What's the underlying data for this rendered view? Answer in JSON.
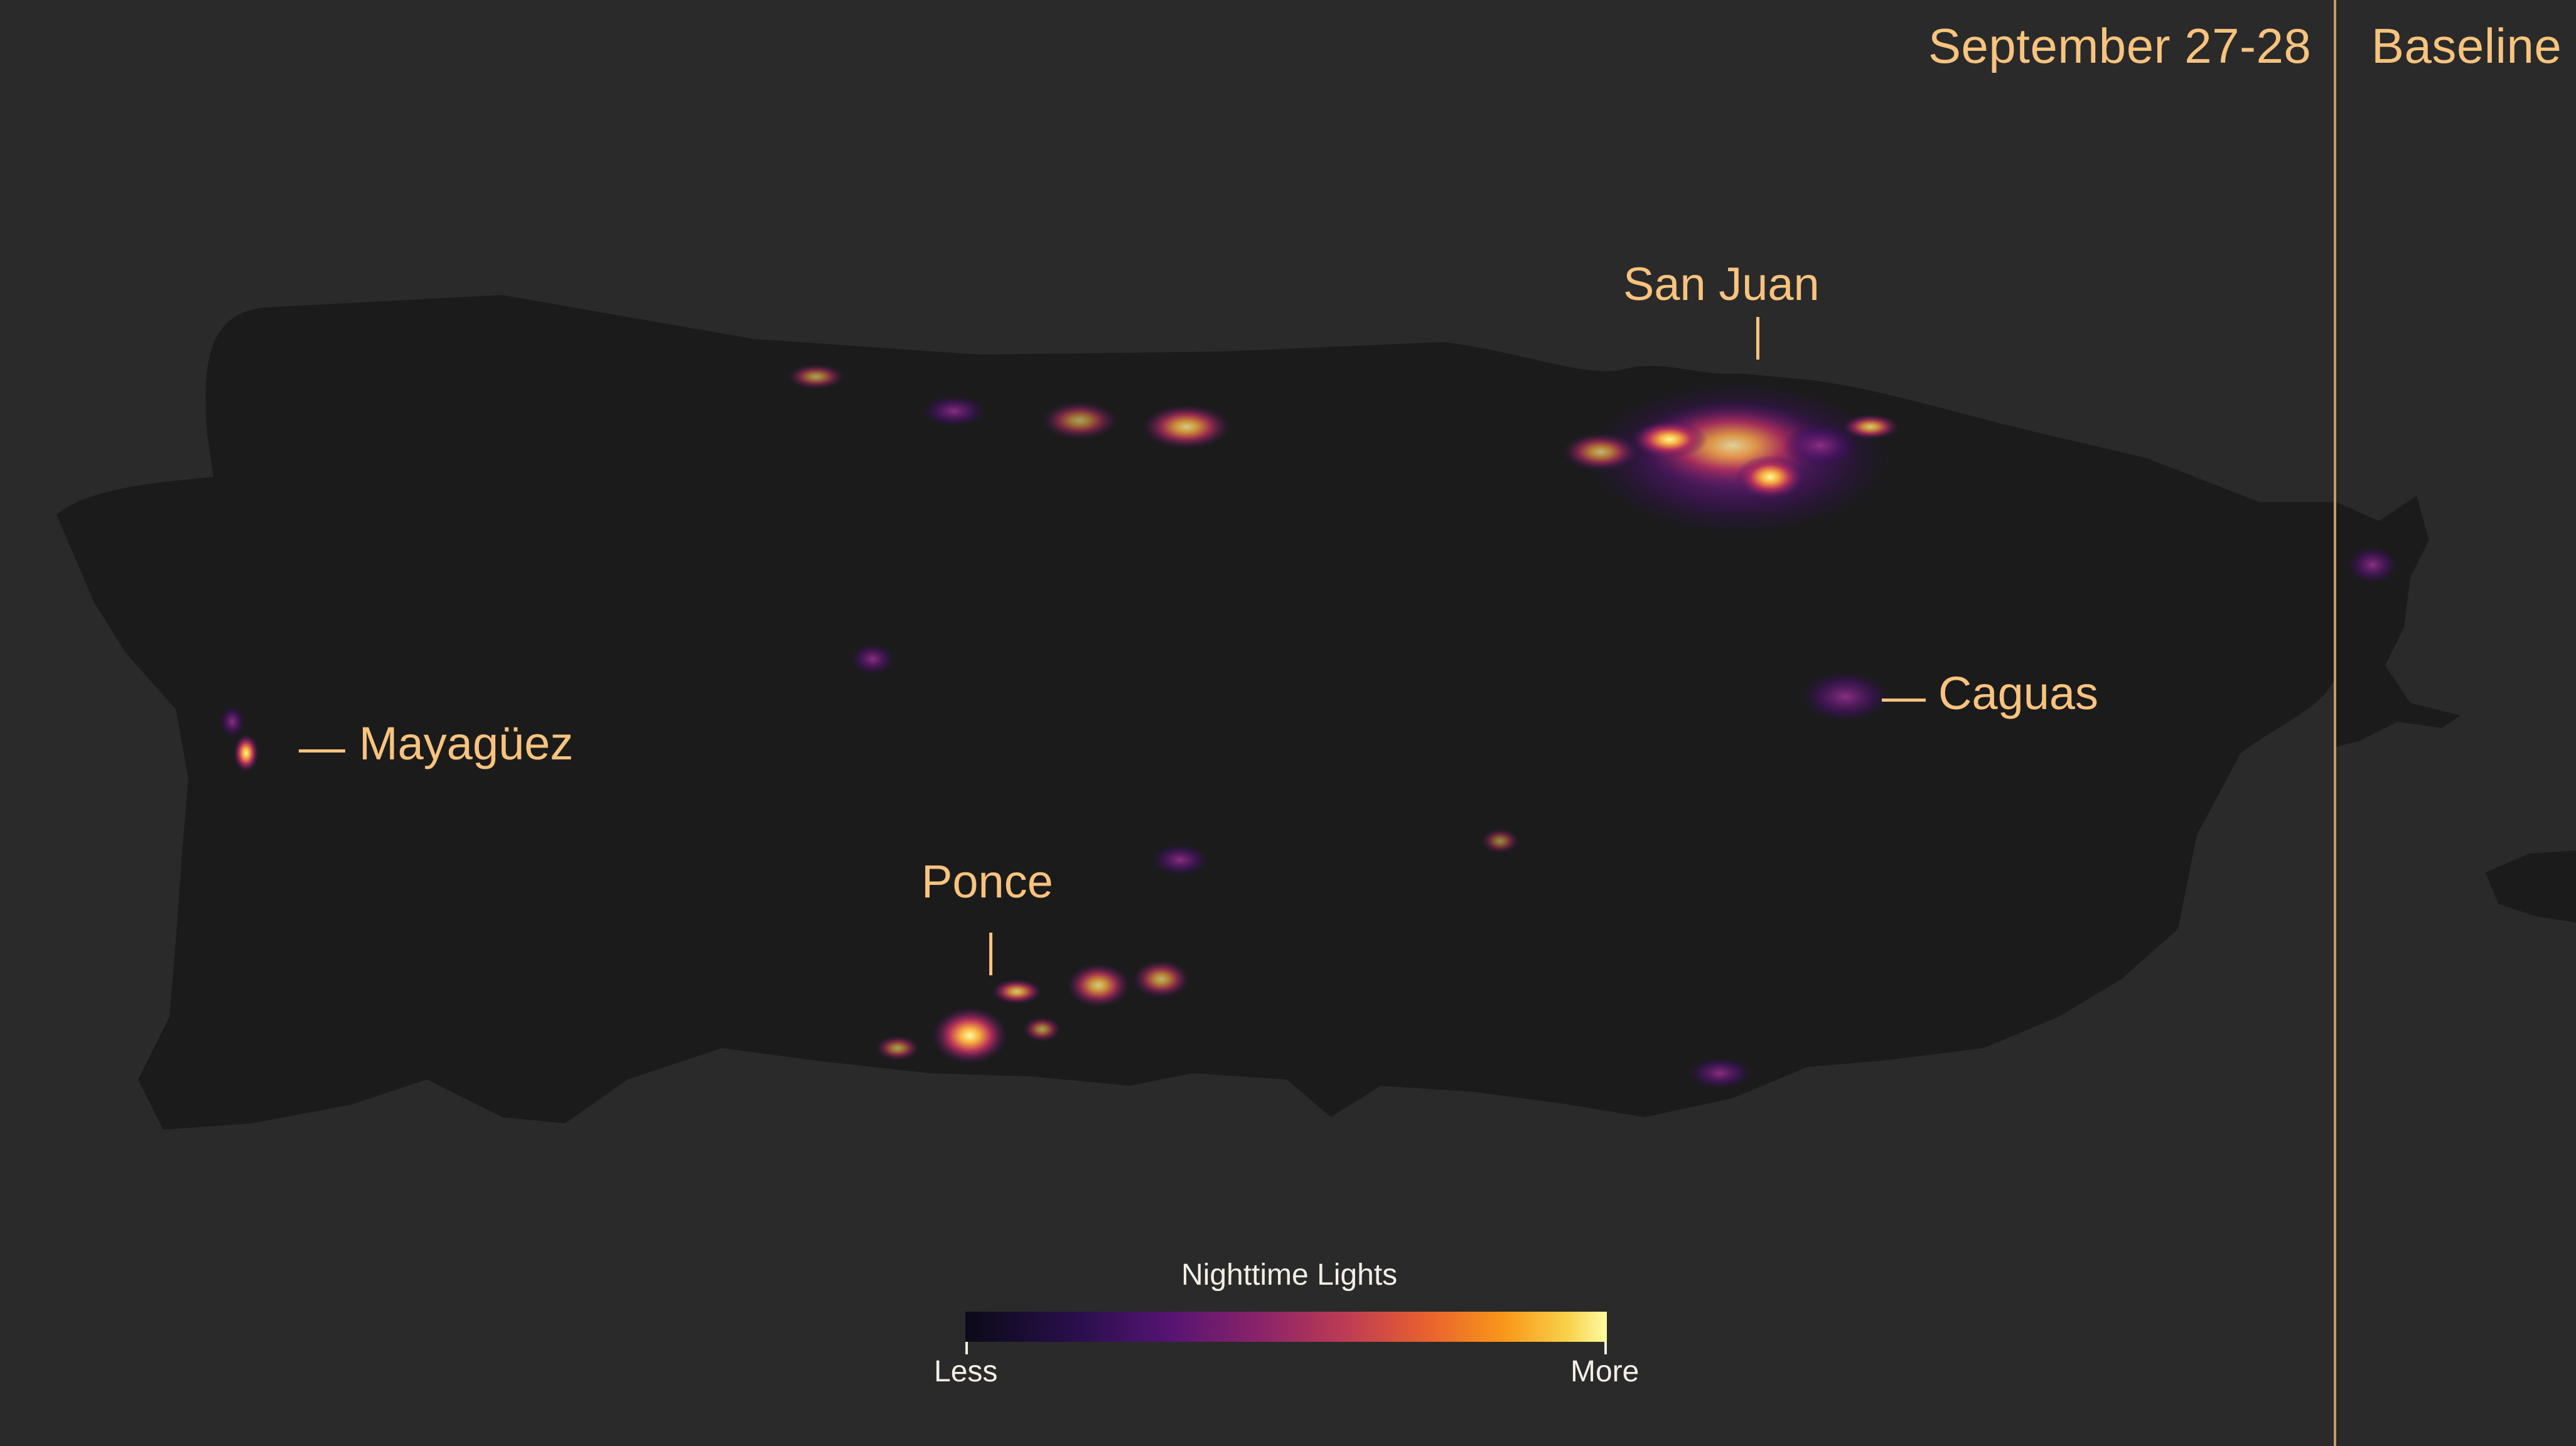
{
  "header": {
    "date_label": "September 27-28",
    "baseline_label": "Baseline"
  },
  "cities": {
    "san_juan": "San Juan",
    "caguas": "Caguas",
    "mayaguez": "Mayagüez",
    "ponce": "Ponce"
  },
  "legend": {
    "title": "Nighttime Lights",
    "low": "Less",
    "high": "More",
    "colors": [
      "#0c0a18",
      "#2a0f4e",
      "#571473",
      "#8a2369",
      "#c03d52",
      "#e8612f",
      "#f9971a",
      "#f9d24a",
      "#fcfba0"
    ]
  },
  "colors": {
    "background": "#2a2a2a",
    "land": "#1c1b1c",
    "label": "#f7c37e"
  }
}
